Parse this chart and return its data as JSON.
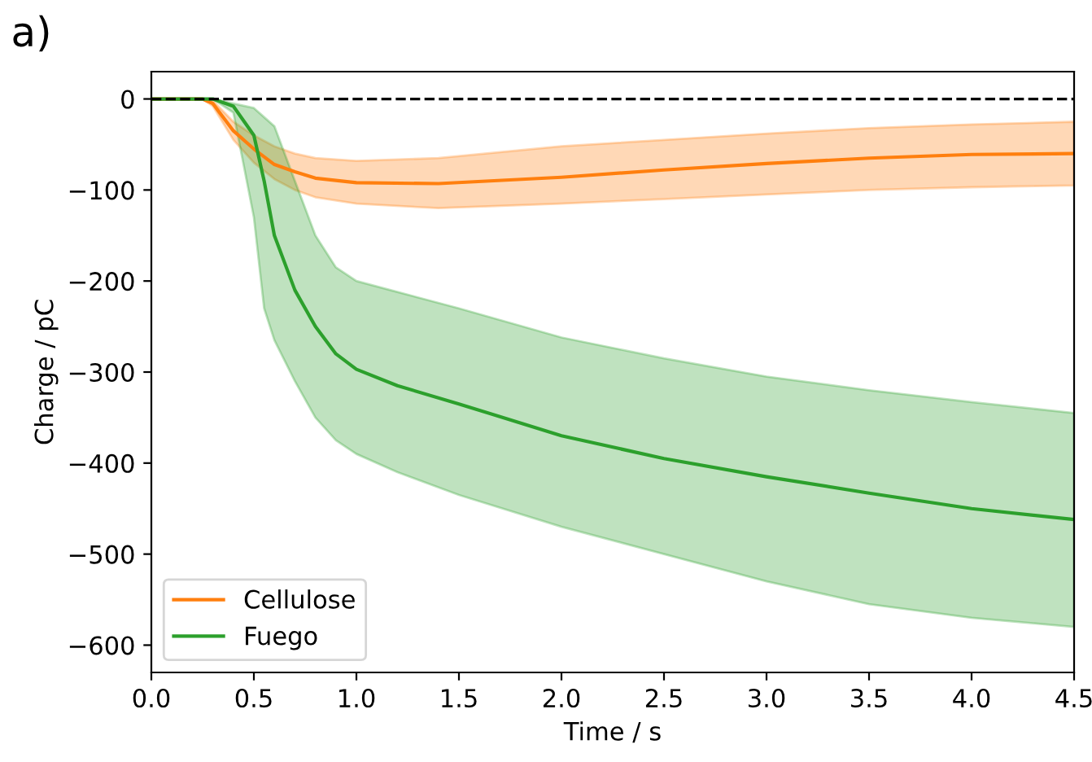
{
  "chart_data": {
    "type": "line",
    "xlabel": "Time / s",
    "ylabel": "Charge / pC",
    "annotations": [
      "a)"
    ],
    "xlim": [
      0,
      4.5
    ],
    "ylim": [
      -630,
      30
    ],
    "xticks": [
      {
        "value": 0,
        "label": "0.0"
      },
      {
        "value": 0.5,
        "label": "0.5"
      },
      {
        "value": 1,
        "label": "1.0"
      },
      {
        "value": 1.5,
        "label": "1.5"
      },
      {
        "value": 2,
        "label": "2.0"
      },
      {
        "value": 2.5,
        "label": "2.5"
      },
      {
        "value": 3,
        "label": "3.0"
      },
      {
        "value": 3.5,
        "label": "3.5"
      },
      {
        "value": 4,
        "label": "4.0"
      },
      {
        "value": 4.5,
        "label": "4.5"
      }
    ],
    "yticks": [
      {
        "value": 0,
        "label": "0"
      },
      {
        "value": -100,
        "label": "−100"
      },
      {
        "value": -200,
        "label": "−200"
      },
      {
        "value": -300,
        "label": "−300"
      },
      {
        "value": -400,
        "label": "−400"
      },
      {
        "value": -500,
        "label": "−500"
      },
      {
        "value": -600,
        "label": "−600"
      }
    ],
    "legend": "bottom left",
    "grid": false,
    "ref_lines": [
      {
        "axis": "y",
        "value": 0,
        "color": "#000000",
        "line_style": "dashed"
      }
    ],
    "series": [
      {
        "name": "Cellulose",
        "color": "#ff7f0e",
        "x": [
          0,
          0.25,
          0.3,
          0.4,
          0.5,
          0.6,
          0.7,
          0.8,
          1.0,
          1.4,
          2.0,
          2.5,
          3.0,
          3.5,
          4.0,
          4.5
        ],
        "values": [
          0,
          0,
          -5,
          -35,
          -55,
          -72,
          -80,
          -87,
          -92,
          -93,
          -86,
          -78,
          -71,
          -65,
          -61,
          -60
        ],
        "lower": [
          0,
          0,
          -8,
          -45,
          -70,
          -88,
          -100,
          -108,
          -115,
          -120,
          -115,
          -110,
          -105,
          -100,
          -97,
          -95
        ],
        "upper": [
          0,
          0,
          -2,
          -25,
          -40,
          -52,
          -60,
          -65,
          -68,
          -65,
          -52,
          -45,
          -38,
          -32,
          -28,
          -25
        ]
      },
      {
        "name": "Fuego",
        "color": "#2ca02c",
        "x": [
          0,
          0.3,
          0.4,
          0.5,
          0.55,
          0.6,
          0.7,
          0.8,
          0.9,
          1.0,
          1.2,
          1.5,
          2.0,
          2.5,
          3.0,
          3.5,
          4.0,
          4.5
        ],
        "values": [
          0,
          0,
          -8,
          -40,
          -90,
          -150,
          -210,
          -250,
          -280,
          -297,
          -315,
          -335,
          -370,
          -395,
          -415,
          -433,
          -450,
          -462
        ],
        "lower": [
          0,
          0,
          -15,
          -130,
          -230,
          -265,
          -310,
          -350,
          -375,
          -390,
          -410,
          -435,
          -470,
          -500,
          -530,
          -555,
          -570,
          -580
        ],
        "upper": [
          0,
          0,
          -5,
          -10,
          -20,
          -30,
          -90,
          -150,
          -185,
          -200,
          -212,
          -230,
          -262,
          -285,
          -305,
          -320,
          -333,
          -345
        ]
      }
    ]
  }
}
